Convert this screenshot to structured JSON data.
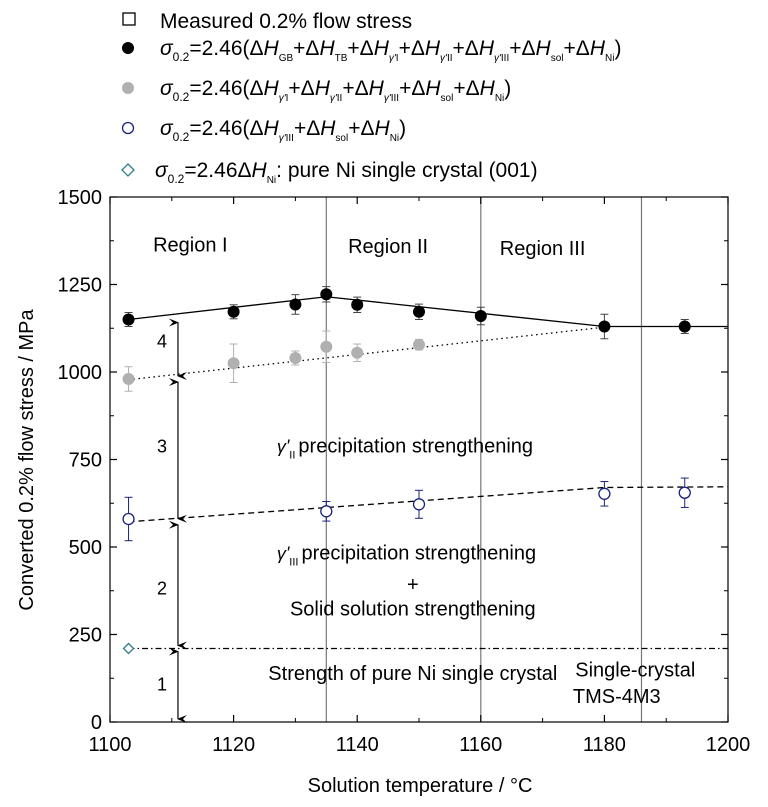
{
  "chart_data": {
    "type": "scatter",
    "xlabel": "Solution temperature / °C",
    "ylabel": "Converted 0.2% flow stress / MPa",
    "xlim": [
      1100,
      1200
    ],
    "ylim": [
      0,
      1500
    ],
    "xticks": [
      1100,
      1120,
      1140,
      1160,
      1180,
      1200
    ],
    "yticks": [
      0,
      250,
      500,
      750,
      1000,
      1250,
      1500
    ],
    "legend_placement": "top",
    "legend": [
      {
        "marker": "open-square",
        "text": "Measured 0.2% flow stress"
      },
      {
        "marker": "filled-circle-black",
        "text": "σ_0.2=2.46(ΔH_GB+ΔH_TB+ΔH_γ'I+ΔH_γ'II+ΔH_γ'III+ΔH_sol+ΔH_Ni)"
      },
      {
        "marker": "filled-circle-grey",
        "text": "σ_0.2=2.46(ΔH_γ'I+ΔH_γ'II+ΔH_γ'III+ΔH_sol+ΔH_Ni)"
      },
      {
        "marker": "open-circle-navy",
        "text": "σ_0.2=2.46(ΔH_γ'III+ΔH_sol+ΔH_Ni)"
      },
      {
        "marker": "open-diamond-teal",
        "text": "σ_0.2=2.46ΔH_Ni: pure Ni single crystal (001)"
      }
    ],
    "series": [
      {
        "name": "σ_0.2=2.46(ΔH_GB+ΔH_TB+ΔH_γ'I+ΔH_γ'II+ΔH_γ'III+ΔH_sol+ΔH_Ni)",
        "color": "#000000",
        "marker": "filled-circle",
        "x": [
          1103,
          1120,
          1130,
          1135,
          1140,
          1150,
          1160,
          1180,
          1193
        ],
        "y": [
          1150,
          1172,
          1193,
          1222,
          1192,
          1172,
          1160,
          1130,
          1130
        ],
        "err": [
          20,
          20,
          28,
          22,
          22,
          22,
          25,
          35,
          20
        ]
      },
      {
        "name": "σ_0.2=2.46(ΔH_γ'I+ΔH_γ'II+ΔH_γ'III+ΔH_sol+ΔH_Ni)",
        "color": "#b0b0b0",
        "marker": "filled-circle",
        "x": [
          1103,
          1120,
          1130,
          1135,
          1140,
          1150
        ],
        "y": [
          980,
          1025,
          1040,
          1072,
          1055,
          1078
        ],
        "err": [
          35,
          55,
          20,
          45,
          25,
          15
        ]
      },
      {
        "name": "σ_0.2=2.46(ΔH_γ'III+ΔH_sol+ΔH_Ni)",
        "color": "#1a237e",
        "marker": "open-circle",
        "x": [
          1103,
          1135,
          1150,
          1180,
          1193
        ],
        "y": [
          580,
          602,
          622,
          652,
          655
        ],
        "err": [
          62,
          28,
          40,
          35,
          42
        ]
      },
      {
        "name": "σ_0.2=2.46ΔH_Ni: pure Ni single crystal (001)",
        "color": "#2e7d8a",
        "marker": "open-diamond",
        "x": [
          1103
        ],
        "y": [
          210
        ],
        "err": [
          0
        ]
      }
    ],
    "lines": [
      {
        "style": "solid",
        "color": "#000000",
        "x": [
          1103,
          1135,
          1180,
          1200
        ],
        "y": [
          1150,
          1215,
          1130,
          1130
        ]
      },
      {
        "style": "dotted",
        "color": "#000000",
        "x": [
          1103,
          1180
        ],
        "y": [
          978,
          1128
        ]
      },
      {
        "style": "dashed",
        "color": "#000000",
        "x": [
          1103,
          1180,
          1200
        ],
        "y": [
          572,
          670,
          672
        ]
      },
      {
        "style": "dashdot",
        "color": "#000000",
        "x": [
          1103,
          1200
        ],
        "y": [
          210,
          210
        ]
      }
    ],
    "vlines": [
      1135,
      1160,
      1186
    ],
    "regions": [
      {
        "label": "Region I",
        "x": 1113,
        "y": 1345
      },
      {
        "label": "Region II",
        "x": 1145,
        "y": 1340
      },
      {
        "label": "Region III",
        "x": 1170,
        "y": 1335
      }
    ],
    "arrows": [
      {
        "label": "4",
        "x": 1111,
        "y_from": 1150,
        "y_to": 980,
        "label_y": 1090
      },
      {
        "label": "3",
        "x": 1111,
        "y_from": 980,
        "y_to": 572,
        "label_y": 790
      },
      {
        "label": "2",
        "x": 1111,
        "y_from": 572,
        "y_to": 210,
        "label_y": 385
      },
      {
        "label": "1",
        "x": 1111,
        "y_from": 210,
        "y_to": 0,
        "label_y": 110
      }
    ],
    "annotations": [
      {
        "text": "precipitation strengthening",
        "prefix": "γ'",
        "sub": "II",
        "x": 1127,
        "y": 770
      },
      {
        "text": "precipitation strengthening",
        "prefix": "γ'",
        "sub": "III",
        "x": 1127,
        "y": 465
      },
      {
        "text": "+",
        "x": 1149,
        "y": 375
      },
      {
        "text": "Solid solution strengthening",
        "x": 1149,
        "y": 305
      },
      {
        "text": "Strength of pure Ni single crystal",
        "x": 1149,
        "y": 120
      },
      {
        "text": "Single-crystal",
        "x": 1185,
        "y": 130
      },
      {
        "text": "TMS-4M3",
        "x": 1182,
        "y": 55
      }
    ]
  }
}
